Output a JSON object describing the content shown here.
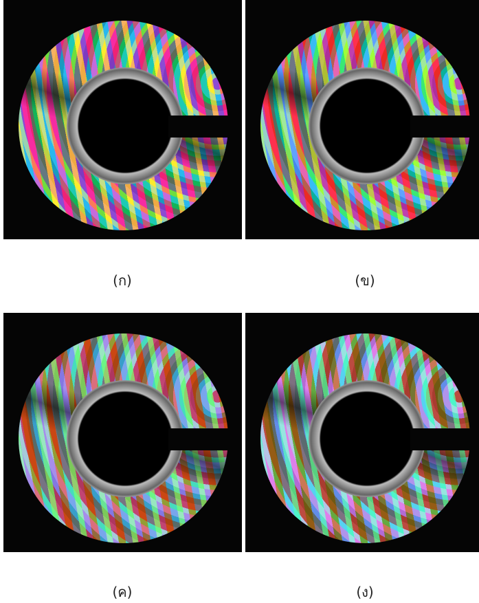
{
  "panels": [
    {
      "label": "(ก)"
    },
    {
      "label": "(ข)"
    },
    {
      "label": "(ค)"
    },
    {
      "label": "(ง)"
    }
  ]
}
